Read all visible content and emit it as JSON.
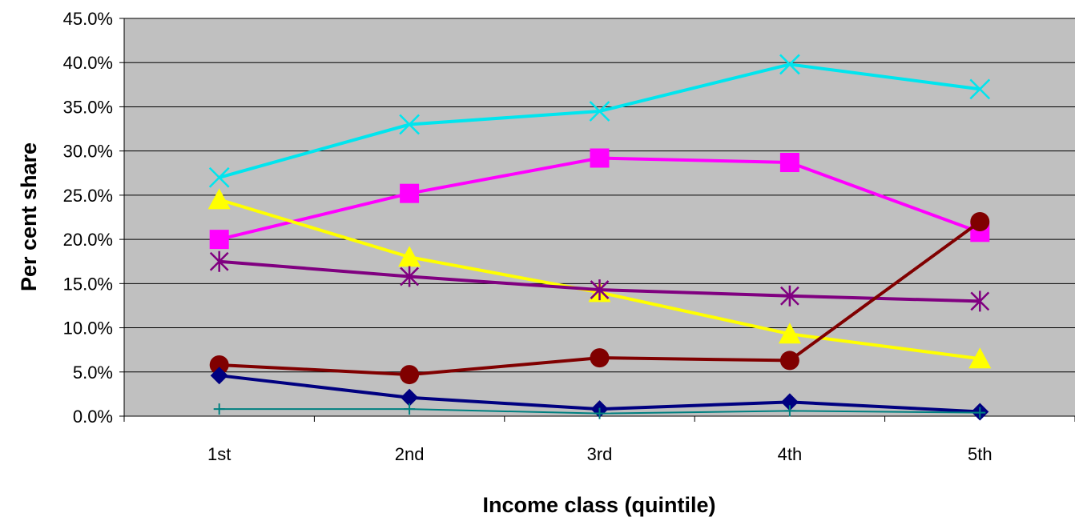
{
  "chart_data": {
    "type": "line",
    "title": "",
    "xlabel": "Income class (quintile)",
    "ylabel": "Per cent share",
    "categories": [
      "1st",
      "2nd",
      "3rd",
      "4th",
      "5th"
    ],
    "ylim": [
      0,
      45
    ],
    "y_unit": "%",
    "ytick_labels": [
      "0.0%",
      "5.0%",
      "10.0%",
      "15.0%",
      "20.0%",
      "25.0%",
      "30.0%",
      "35.0%",
      "40.0%",
      "45.0%"
    ],
    "yticks": [
      0,
      5,
      10,
      15,
      20,
      25,
      30,
      35,
      40,
      45
    ],
    "grid": "horizontal",
    "legend": "none",
    "plot_background": "#c0c0c0",
    "series": [
      {
        "color": "#00e5ee",
        "marker": "x",
        "values": [
          27.0,
          33.0,
          34.5,
          39.8,
          37.0
        ]
      },
      {
        "color": "#ff00ff",
        "marker": "square",
        "values": [
          20.0,
          25.2,
          29.2,
          28.7,
          20.8
        ]
      },
      {
        "color": "#ffff00",
        "marker": "triangle",
        "values": [
          24.5,
          18.0,
          14.0,
          9.3,
          6.5
        ]
      },
      {
        "color": "#800080",
        "marker": "asterisk",
        "values": [
          17.5,
          15.8,
          14.3,
          13.6,
          13.0
        ]
      },
      {
        "color": "#800000",
        "marker": "circle",
        "values": [
          5.8,
          4.7,
          6.6,
          6.3,
          22.0
        ]
      },
      {
        "color": "#000080",
        "marker": "diamond",
        "values": [
          4.6,
          2.1,
          0.8,
          1.6,
          0.5
        ]
      },
      {
        "color": "#008080",
        "marker": "plus",
        "values": [
          0.8,
          0.8,
          0.3,
          0.6,
          0.4
        ]
      }
    ]
  }
}
